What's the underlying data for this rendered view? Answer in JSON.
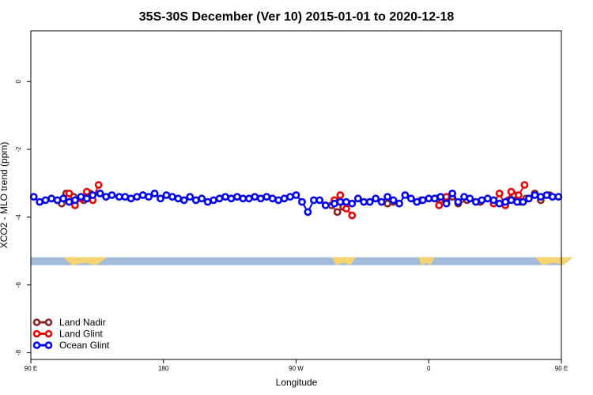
{
  "chart_data": {
    "type": "scatter",
    "title": "35S-30S December (Ver 10)   2015-01-01 to 2020-12-18",
    "xlabel": "Longitude",
    "ylabel": "XCO2 - MLO trend (ppm)",
    "xlim": [
      90,
      450
    ],
    "ylim": [
      -8.2,
      1.5
    ],
    "x_ticks": [
      {
        "value": 90,
        "label": "90 E"
      },
      {
        "value": 180,
        "label": "180"
      },
      {
        "value": 270,
        "label": "90 W"
      },
      {
        "value": 360,
        "label": "0"
      },
      {
        "value": 450,
        "label": "90 E"
      },
      {
        "value": 540,
        "label": "180"
      }
    ],
    "y_ticks": [
      {
        "value": 0,
        "label": "0"
      },
      {
        "value": -2,
        "label": "-2"
      },
      {
        "value": -4,
        "label": "-4"
      },
      {
        "value": -6,
        "label": "-6"
      },
      {
        "value": -8,
        "label": "-8"
      }
    ],
    "grid": false,
    "legend_position": "bottom-left",
    "land_ocean_band": {
      "y_center": -5.3,
      "ocean_color": "#a3bbdb",
      "land_color": "#f5d36e",
      "land_segments": [
        [
          112,
          142
        ],
        [
          294,
          311
        ],
        [
          353,
          364
        ],
        [
          432,
          458
        ]
      ]
    },
    "series": [
      {
        "name": "Land Nadir",
        "color": "#8b2323",
        "x": [
          111,
          114,
          119,
          126,
          130,
          294,
          298,
          302,
          332,
          336,
          355,
          366,
          372,
          376,
          380,
          386,
          395,
          414,
          418,
          422,
          426,
          432,
          436,
          442
        ],
        "y": [
          -3.6,
          -3.3,
          -3.4,
          -3.5,
          -3.3,
          -3.65,
          -3.85,
          -3.7,
          -3.6,
          -3.55,
          -3.5,
          -3.45,
          -3.5,
          -3.4,
          -3.6,
          -3.5,
          -3.55,
          -3.5,
          -3.35,
          -3.55,
          -3.45,
          -3.3,
          -3.5,
          -3.35
        ]
      },
      {
        "name": "Land Glint",
        "color": "#ee0000",
        "x": [
          116,
          120,
          124,
          128,
          132,
          136,
          296,
          300,
          304,
          308,
          367,
          372,
          404,
          408,
          412,
          416,
          421,
          425
        ],
        "y": [
          -3.3,
          -3.65,
          -3.45,
          -3.25,
          -3.5,
          -3.05,
          -3.5,
          -3.35,
          -3.75,
          -3.95,
          -3.65,
          -3.4,
          -3.6,
          -3.3,
          -3.65,
          -3.25,
          -3.35,
          -3.05
        ]
      },
      {
        "name": "Ocean Glint",
        "color": "#0000ee",
        "x": [
          92,
          96,
          100,
          104,
          108,
          112,
          116,
          120,
          124,
          128,
          132,
          137,
          141,
          145,
          150,
          154,
          158,
          162,
          166,
          170,
          174,
          178,
          182,
          186,
          190,
          194,
          198,
          202,
          206,
          210,
          214,
          218,
          222,
          226,
          230,
          234,
          238,
          242,
          246,
          250,
          254,
          258,
          262,
          266,
          270,
          274,
          278,
          282,
          286,
          290,
          296,
          300,
          304,
          308,
          312,
          316,
          320,
          324,
          328,
          332,
          336,
          340,
          344,
          348,
          352,
          356,
          360,
          364,
          368,
          372,
          376,
          380,
          384,
          388,
          392,
          396,
          400,
          404,
          408,
          412,
          416,
          420,
          424,
          428,
          432,
          436,
          440,
          444,
          448
        ],
        "y": [
          -3.4,
          -3.55,
          -3.5,
          -3.45,
          -3.5,
          -3.45,
          -3.55,
          -3.5,
          -3.4,
          -3.45,
          -3.35,
          -3.3,
          -3.4,
          -3.35,
          -3.4,
          -3.4,
          -3.45,
          -3.4,
          -3.35,
          -3.4,
          -3.3,
          -3.45,
          -3.35,
          -3.4,
          -3.45,
          -3.5,
          -3.4,
          -3.5,
          -3.45,
          -3.55,
          -3.5,
          -3.45,
          -3.4,
          -3.45,
          -3.4,
          -3.45,
          -3.45,
          -3.4,
          -3.45,
          -3.4,
          -3.45,
          -3.5,
          -3.45,
          -3.4,
          -3.35,
          -3.55,
          -3.85,
          -3.5,
          -3.5,
          -3.65,
          -3.6,
          -3.55,
          -3.55,
          -3.6,
          -3.45,
          -3.55,
          -3.55,
          -3.45,
          -3.55,
          -3.4,
          -3.5,
          -3.6,
          -3.35,
          -3.45,
          -3.55,
          -3.5,
          -3.45,
          -3.45,
          -3.4,
          -3.6,
          -3.3,
          -3.55,
          -3.4,
          -3.45,
          -3.55,
          -3.5,
          -3.45,
          -3.5,
          -3.6,
          -3.55,
          -3.5,
          -3.55,
          -3.55,
          -3.45,
          -3.35,
          -3.4,
          -3.35,
          -3.4,
          -3.4
        ]
      }
    ]
  }
}
